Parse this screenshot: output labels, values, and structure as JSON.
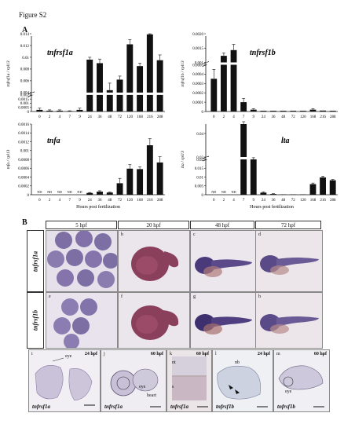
{
  "figure": {
    "title": "Figure S2",
    "panel_a": "A",
    "panel_b": "B"
  },
  "chart_data": [
    {
      "type": "bar",
      "title": "tnfrsf1a",
      "ylabel": "tnfrsf1a / rpl13",
      "categories": [
        "0",
        "2",
        "4",
        "7",
        "9",
        "24",
        "36",
        "48",
        "72",
        "120",
        "168",
        "216",
        "288"
      ],
      "values": [
        0.0002,
        0.0001,
        0.0001,
        5e-05,
        0.0002,
        0.0096,
        0.009,
        0.0044,
        0.0062,
        0.0122,
        0.0085,
        0.0139,
        0.0095
      ],
      "errors": [
        0.0002,
        0.0001,
        0.0001,
        4e-05,
        0.0002,
        0.0004,
        0.0007,
        0.0012,
        0.0006,
        0.0008,
        0.0005,
        0.0004,
        0.0009
      ],
      "yticks_low": [
        "0",
        "0.0005",
        "0.001",
        "0.0015",
        "0.002"
      ],
      "yticks_high": [
        "0.004",
        "0.006",
        "0.008",
        "0.01",
        "0.012",
        "0.014"
      ],
      "axis_break": true
    },
    {
      "type": "bar",
      "title": "tnfrsf1b",
      "ylabel": "tnfrsf1b / rpl13",
      "categories": [
        "0",
        "2",
        "4",
        "7",
        "9",
        "24",
        "36",
        "48",
        "72",
        "120",
        "168",
        "216",
        "288"
      ],
      "values": [
        0.00035,
        0.00123,
        0.00143,
        0.0001,
        2e-05,
        8e-06,
        8e-06,
        8e-06,
        8e-06,
        8e-06,
        2e-05,
        1e-05,
        8e-06
      ],
      "errors": [
        0.0001,
        0.0001,
        0.0002,
        4e-05,
        1e-05,
        0,
        0,
        0,
        0,
        0,
        1e-05,
        0,
        0
      ],
      "yticks_low": [
        "0",
        "0.0001",
        "0.0002",
        "0.0003",
        "0.0004",
        "0.0005"
      ],
      "yticks_high": [
        "0.001",
        "0.0015",
        "0.0020"
      ],
      "axis_break": true
    },
    {
      "type": "bar",
      "title": "tnfa",
      "ylabel": "tnfa / rpl13",
      "categories": [
        "0",
        "2",
        "4",
        "7",
        "9",
        "24",
        "36",
        "48",
        "72",
        "120",
        "168",
        "216",
        "288"
      ],
      "values": [
        0,
        0,
        0,
        0,
        0,
        4e-05,
        7e-05,
        5e-05,
        0.00026,
        0.00059,
        0.00058,
        0.00112,
        0.00073
      ],
      "errors": [
        0,
        0,
        0,
        0,
        0,
        1e-05,
        2e-05,
        1e-05,
        0.00011,
        9e-05,
        5e-05,
        0.00015,
        0.00013
      ],
      "na_labels": [
        "ND",
        "ND",
        "ND",
        "ND",
        "ND",
        "",
        "",
        "",
        "",
        "",
        "",
        "",
        ""
      ],
      "yticks": [
        "0",
        "0.0002",
        "0.0004",
        "0.0006",
        "0.0008",
        "0.001",
        "0.0012",
        "0.0014",
        "0.0016"
      ],
      "ylim": [
        0,
        0.0016
      ],
      "xlabel": "Hours post fertilization"
    },
    {
      "type": "bar",
      "title": "lta",
      "ylabel": "lta / rpl13",
      "categories": [
        "0",
        "2",
        "4",
        "7",
        "9",
        "24",
        "36",
        "48",
        "72",
        "120",
        "168",
        "216",
        "288"
      ],
      "values": [
        0,
        0,
        0,
        0.044,
        0.029,
        0.0012,
        0.0004,
        0.0002,
        0.0002,
        0.0002,
        0.006,
        0.0098,
        0.0082
      ],
      "errors": [
        0,
        0,
        0,
        0.0015,
        0.0007,
        0.0004,
        0.0002,
        0,
        0,
        0,
        0.0006,
        0.0007,
        0.0004
      ],
      "na_labels": [
        "ND",
        "ND",
        "ND",
        "",
        "",
        "",
        "",
        "",
        "",
        "",
        "",
        "",
        ""
      ],
      "yticks_low": [
        "0",
        "0.005",
        "0.01",
        "0.015",
        "0.02"
      ],
      "yticks_high": [
        "0.03",
        "0.04"
      ],
      "axis_break": true,
      "xlabel": "Hours post fertilization"
    }
  ],
  "panel_b": {
    "columns": [
      "5 hpf",
      "20 hpf",
      "48 hpf",
      "72 hpf"
    ],
    "rows": [
      "tnfrsf1a",
      "tnfrsf1b"
    ],
    "tiles": [
      "",
      "b",
      "c",
      "d",
      "e",
      "f",
      "g",
      "h"
    ],
    "sections": [
      {
        "letter": "i",
        "stage": "24 hpf",
        "gene": "tnfrsf1a",
        "labels": [
          "eye"
        ]
      },
      {
        "letter": "j",
        "stage": "60 hpf",
        "gene": "tnfrsf1a",
        "labels": [
          "eye",
          "heart"
        ]
      },
      {
        "letter": "k",
        "stage": "60 hpf",
        "gene": "tnfrsf1a",
        "labels": [
          "nt",
          "s"
        ]
      },
      {
        "letter": "l",
        "stage": "24 hpf",
        "gene": "tnfrsf1b",
        "labels": [
          "nb"
        ]
      },
      {
        "letter": "m",
        "stage": "60 hpf",
        "gene": "tnfrsf1b",
        "labels": [
          "eye"
        ]
      }
    ]
  },
  "colors": {
    "bar": "#111111",
    "embryo_stain": "#5a4a8a",
    "background_embryo": "#ded8e4"
  }
}
